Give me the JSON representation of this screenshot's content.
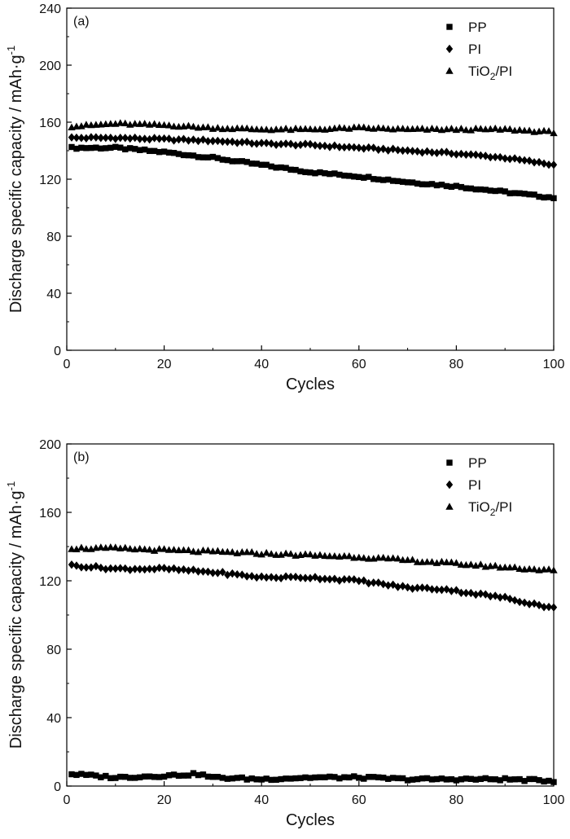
{
  "chart_data": [
    {
      "type": "scatter",
      "panel_label": "(a)",
      "xlabel": "Cycles",
      "ylabel": "Discharge specific capacity / mAh·g",
      "ylabel_superscript": "-1",
      "xlim": [
        0,
        100
      ],
      "ylim": [
        0,
        240
      ],
      "xticks": [
        0,
        20,
        40,
        60,
        80,
        100
      ],
      "yticks": [
        0,
        40,
        80,
        120,
        160,
        200,
        240
      ],
      "legend_position": "top-right",
      "series": [
        {
          "name": "PP",
          "name_parts": {
            "main": "PP",
            "sub": "",
            "tail": ""
          },
          "marker": "square",
          "color": "#000000",
          "keypoints": [
            [
              1,
              142
            ],
            [
              10,
              142
            ],
            [
              20,
              139
            ],
            [
              30,
              135
            ],
            [
              40,
              130
            ],
            [
              50,
              125
            ],
            [
              60,
              122
            ],
            [
              70,
              118
            ],
            [
              80,
              115
            ],
            [
              90,
              111
            ],
            [
              100,
              107
            ]
          ]
        },
        {
          "name": "PI",
          "name_parts": {
            "main": "PI",
            "sub": "",
            "tail": ""
          },
          "marker": "diamond",
          "color": "#000000",
          "keypoints": [
            [
              1,
              149
            ],
            [
              10,
              149
            ],
            [
              20,
              148
            ],
            [
              30,
              147
            ],
            [
              40,
              145
            ],
            [
              50,
              144
            ],
            [
              60,
              142
            ],
            [
              70,
              140
            ],
            [
              80,
              138
            ],
            [
              90,
              135
            ],
            [
              100,
              130
            ]
          ]
        },
        {
          "name": "TiO2/PI",
          "name_parts": {
            "main": "TiO",
            "sub": "2",
            "tail": "/PI"
          },
          "marker": "triangle",
          "color": "#000000",
          "keypoints": [
            [
              1,
              157
            ],
            [
              10,
              159
            ],
            [
              20,
              158
            ],
            [
              30,
              156
            ],
            [
              40,
              155
            ],
            [
              50,
              155
            ],
            [
              60,
              156
            ],
            [
              70,
              155
            ],
            [
              80,
              155
            ],
            [
              90,
              155
            ],
            [
              100,
              153
            ]
          ]
        }
      ]
    },
    {
      "type": "scatter",
      "panel_label": "(b)",
      "xlabel": "Cycles",
      "ylabel": "Discharge specific capacity / mAh·g",
      "ylabel_superscript": "-1",
      "xlim": [
        0,
        100
      ],
      "ylim": [
        0,
        200
      ],
      "xticks": [
        0,
        20,
        40,
        60,
        80,
        100
      ],
      "yticks": [
        0,
        40,
        80,
        120,
        160,
        200
      ],
      "legend_position": "top-right",
      "series": [
        {
          "name": "PP",
          "name_parts": {
            "main": "PP",
            "sub": "",
            "tail": ""
          },
          "marker": "square",
          "color": "#000000",
          "keypoints": [
            [
              1,
              7
            ],
            [
              10,
              5
            ],
            [
              20,
              6
            ],
            [
              27,
              7
            ],
            [
              30,
              5
            ],
            [
              40,
              4
            ],
            [
              50,
              5
            ],
            [
              60,
              5
            ],
            [
              70,
              4
            ],
            [
              80,
              4
            ],
            [
              90,
              4
            ],
            [
              100,
              3
            ]
          ]
        },
        {
          "name": "PI",
          "name_parts": {
            "main": "PI",
            "sub": "",
            "tail": ""
          },
          "marker": "diamond",
          "color": "#000000",
          "keypoints": [
            [
              1,
              129
            ],
            [
              10,
              127
            ],
            [
              20,
              127
            ],
            [
              30,
              125
            ],
            [
              40,
              122
            ],
            [
              50,
              122
            ],
            [
              60,
              120
            ],
            [
              70,
              116
            ],
            [
              78,
              115
            ],
            [
              80,
              114
            ],
            [
              90,
              110
            ],
            [
              100,
              104
            ]
          ]
        },
        {
          "name": "TiO2/PI",
          "name_parts": {
            "main": "TiO",
            "sub": "2",
            "tail": "/PI"
          },
          "marker": "triangle",
          "color": "#000000",
          "keypoints": [
            [
              1,
              139
            ],
            [
              10,
              139
            ],
            [
              20,
              138
            ],
            [
              30,
              137
            ],
            [
              40,
              136
            ],
            [
              50,
              135
            ],
            [
              60,
              134
            ],
            [
              70,
              132
            ],
            [
              80,
              130
            ],
            [
              90,
              128
            ],
            [
              100,
              126
            ]
          ]
        }
      ]
    }
  ]
}
